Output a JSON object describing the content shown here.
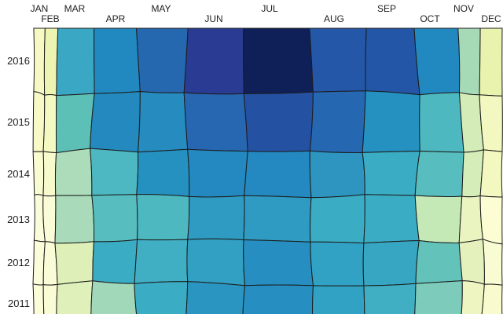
{
  "chart_data": {
    "type": "heatmap",
    "title": "",
    "colormap": "YlGnBu",
    "legend": "none",
    "grid_line_color": "#1c1c1c",
    "text_color": "#1f1f1f",
    "background": "#ffffff",
    "mesh_style": "distorted-quadrilateral-mesh",
    "x_axis": {
      "position": "top",
      "staggered_labels": true,
      "categories": [
        "JAN",
        "FEB",
        "MAR",
        "APR",
        "MAY",
        "JUN",
        "JUL",
        "AUG",
        "SEP",
        "OCT",
        "NOV",
        "DEC"
      ]
    },
    "y_axis": {
      "position": "left",
      "categories": [
        "2016",
        "2015",
        "2014",
        "2013",
        "2012",
        "2011"
      ]
    },
    "rows": [
      {
        "year": "2016",
        "colors": [
          "#f7f9c5",
          "#edf4b1",
          "#3aa8c4",
          "#2289c0",
          "#2668b0",
          "#2a3b94",
          "#0e2057",
          "#2457a8",
          "#2356a7",
          "#2289c0",
          "#a6dab6",
          "#eaf3ae"
        ],
        "intensity": [
          0.06,
          0.12,
          0.53,
          0.63,
          0.73,
          0.86,
          0.97,
          0.75,
          0.75,
          0.63,
          0.3,
          0.13
        ]
      },
      {
        "year": "2015",
        "colors": [
          "#f7f9c6",
          "#f4f8c1",
          "#5dc0b6",
          "#2489bf",
          "#268bbf",
          "#2767b1",
          "#2551a3",
          "#2667b1",
          "#2591c1",
          "#4db8c0",
          "#d3ecb8",
          "#f3f7c0"
        ],
        "intensity": [
          0.05,
          0.08,
          0.42,
          0.62,
          0.62,
          0.72,
          0.77,
          0.72,
          0.61,
          0.47,
          0.21,
          0.09
        ]
      },
      {
        "year": "2014",
        "colors": [
          "#f9fbd0",
          "#f7facc",
          "#addcba",
          "#4db8c1",
          "#2591c1",
          "#2389c0",
          "#2389c0",
          "#2d95c0",
          "#3aacc4",
          "#58bdbe",
          "#d5eeb9",
          "#f3f8c1"
        ],
        "intensity": [
          0.04,
          0.05,
          0.29,
          0.47,
          0.61,
          0.63,
          0.63,
          0.59,
          0.53,
          0.44,
          0.2,
          0.09
        ]
      },
      {
        "year": "2013",
        "colors": [
          "#fbfcd9",
          "#fafcd8",
          "#a9dbba",
          "#58bdbe",
          "#4db8c0",
          "#2f9bc3",
          "#2f9bc3",
          "#3aacc4",
          "#3aacc4",
          "#c5e8b7",
          "#eaf4c1",
          "#fcfdd3"
        ],
        "intensity": [
          0.02,
          0.02,
          0.3,
          0.44,
          0.47,
          0.57,
          0.57,
          0.53,
          0.53,
          0.24,
          0.12,
          0.02
        ]
      },
      {
        "year": "2012",
        "colors": [
          "#fbfcd9",
          "#fafcd7",
          "#def0b7",
          "#3aacc4",
          "#40aec3",
          "#32a0c2",
          "#268ec0",
          "#31a2c3",
          "#36a6c3",
          "#63c3bb",
          "#e4f1bd",
          "#f9fbd3"
        ],
        "intensity": [
          0.02,
          0.03,
          0.16,
          0.53,
          0.52,
          0.55,
          0.6,
          0.54,
          0.52,
          0.41,
          0.15,
          0.03
        ]
      },
      {
        "year": "2011",
        "colors": [
          "#fbfcd8",
          "#fafcd5",
          "#dff0bb",
          "#a1d8b9",
          "#3aacc3",
          "#2b95c1",
          "#268ec0",
          "#31a2c3",
          "#40aec3",
          "#7dcbba",
          "#eef5c1",
          "#f9fbce"
        ],
        "intensity": [
          0.02,
          0.03,
          0.15,
          0.31,
          0.53,
          0.59,
          0.6,
          0.54,
          0.52,
          0.37,
          0.13,
          0.04
        ]
      }
    ]
  }
}
